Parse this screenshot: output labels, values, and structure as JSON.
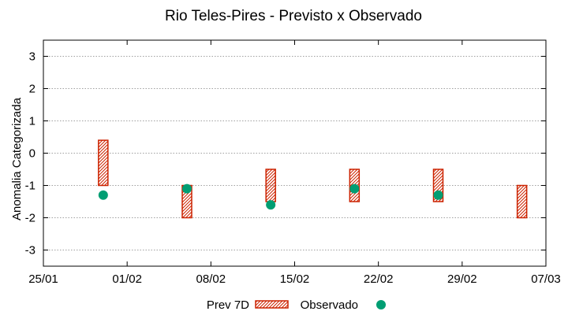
{
  "chart_data": {
    "type": "range-bar-scatter",
    "title": "Rio Teles-Pires - Previsto x Observado",
    "xlabel": "",
    "ylabel": "Anomalia Categorizada",
    "xticks": [
      "25/01",
      "01/02",
      "08/02",
      "15/02",
      "22/02",
      "29/02",
      "07/03"
    ],
    "xlim_days": [
      0,
      42
    ],
    "ylim": [
      -3.5,
      3.5
    ],
    "yticks": [
      3,
      2,
      1,
      0,
      -1,
      -2,
      -3
    ],
    "grid": true,
    "series": [
      {
        "name": "Prev 7D",
        "kind": "range",
        "x_days": [
          5,
          12,
          19,
          26,
          33,
          40
        ],
        "low": [
          -1.0,
          -2.0,
          -1.5,
          -1.5,
          -1.5,
          -2.0
        ],
        "high": [
          0.4,
          -1.0,
          -0.5,
          -0.5,
          -0.5,
          -1.0
        ]
      },
      {
        "name": "Observado",
        "kind": "point",
        "x_days": [
          5,
          12,
          19,
          26,
          33
        ],
        "values": [
          -1.3,
          -1.1,
          -1.6,
          -1.1,
          -1.3
        ]
      }
    ],
    "legend_position": "bottom-center"
  },
  "colors": {
    "forecast": "#cc2200",
    "observed": "#009e73",
    "grid": "#a0a0a0",
    "axis": "#000000"
  }
}
